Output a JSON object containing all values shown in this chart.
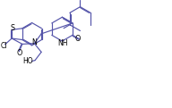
{
  "bg_color": "#ffffff",
  "line_color": "#5555aa",
  "figsize": [
    1.92,
    1.21
  ],
  "dpi": 100,
  "xlim": [
    0,
    10
  ],
  "ylim": [
    0,
    6.5
  ]
}
